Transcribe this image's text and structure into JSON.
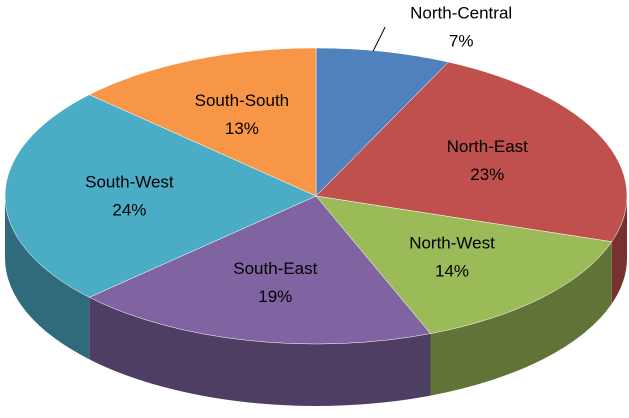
{
  "chart_data": {
    "type": "pie",
    "categories": [
      "North-Central",
      "North-East",
      "North-West",
      "South-East",
      "South-West",
      "South-South"
    ],
    "values": [
      7,
      23,
      14,
      19,
      24,
      13
    ],
    "value_labels": [
      "7%",
      "23%",
      "14%",
      "19%",
      "24%",
      "13%"
    ],
    "colors": [
      "#4f81bd",
      "#c0504d",
      "#9bbb59",
      "#8064a2",
      "#4bacc6",
      "#f79646"
    ]
  }
}
